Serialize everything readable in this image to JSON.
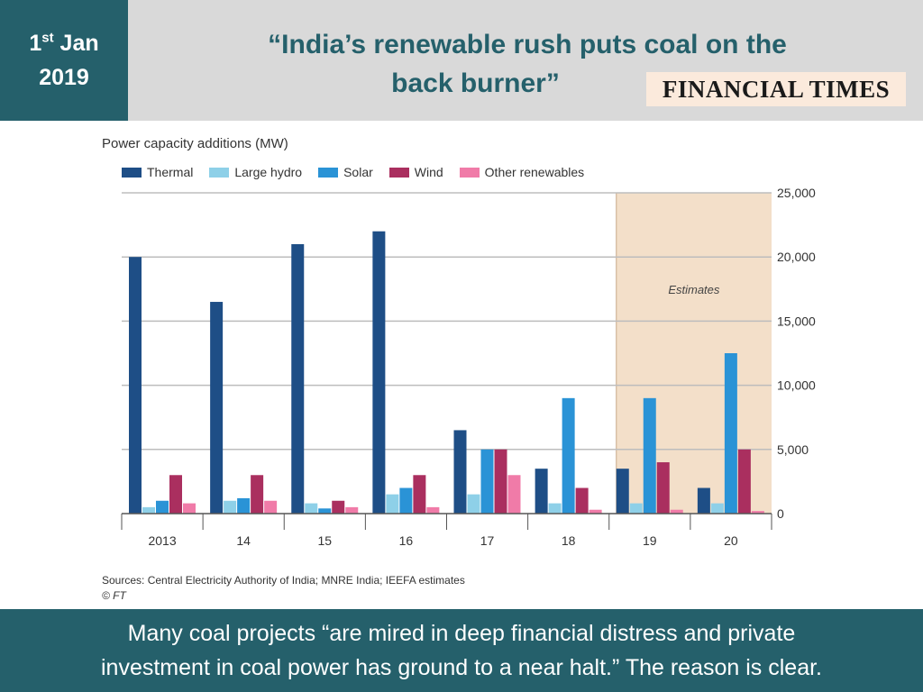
{
  "header": {
    "date_line1": "1",
    "date_sup": "st",
    "date_month": " Jan",
    "date_line2": "2019",
    "headline_line1": "“India’s renewable rush puts coal on the",
    "headline_line2": "back burner”",
    "source_logo": "FINANCIAL TIMES"
  },
  "chart_data": {
    "type": "bar",
    "title": "Power capacity additions (MW)",
    "categories": [
      "2013",
      "14",
      "15",
      "16",
      "17",
      "18",
      "19",
      "20"
    ],
    "series": [
      {
        "name": "Thermal",
        "color": "#1e4e86",
        "values": [
          20000,
          16500,
          21000,
          22000,
          6500,
          3500,
          3500,
          2000
        ]
      },
      {
        "name": "Large hydro",
        "color": "#8ed0e8",
        "values": [
          500,
          1000,
          800,
          1500,
          1500,
          800,
          800,
          800
        ]
      },
      {
        "name": "Solar",
        "color": "#2a93d6",
        "values": [
          1000,
          1200,
          400,
          2000,
          5000,
          9000,
          9000,
          12500
        ]
      },
      {
        "name": "Wind",
        "color": "#aa2f5f",
        "values": [
          3000,
          3000,
          1000,
          3000,
          5000,
          2000,
          4000,
          5000
        ]
      },
      {
        "name": "Other renewables",
        "color": "#f07ba8",
        "values": [
          800,
          1000,
          500,
          500,
          3000,
          300,
          300,
          200
        ]
      }
    ],
    "ylim": [
      0,
      25000
    ],
    "yticks": [
      0,
      5000,
      10000,
      15000,
      20000,
      25000
    ],
    "ytick_labels": [
      "0",
      "5,000",
      "10,000",
      "15,000",
      "20,000",
      "25,000"
    ],
    "y_axis_side": "right",
    "grid": true,
    "legend_position": "top-left",
    "estimates_label": "Estimates",
    "estimates_categories": [
      "19",
      "20"
    ],
    "estimates_color": "#f3dfc9"
  },
  "source": {
    "line1": "Sources: Central Electricity Authority of India; MNRE India; IEEFA estimates",
    "line2": "© FT"
  },
  "footer": {
    "line1": "Many coal projects “are mired in deep financial distress and private",
    "line2": "investment in coal power has ground to a near halt.” The reason is clear."
  }
}
